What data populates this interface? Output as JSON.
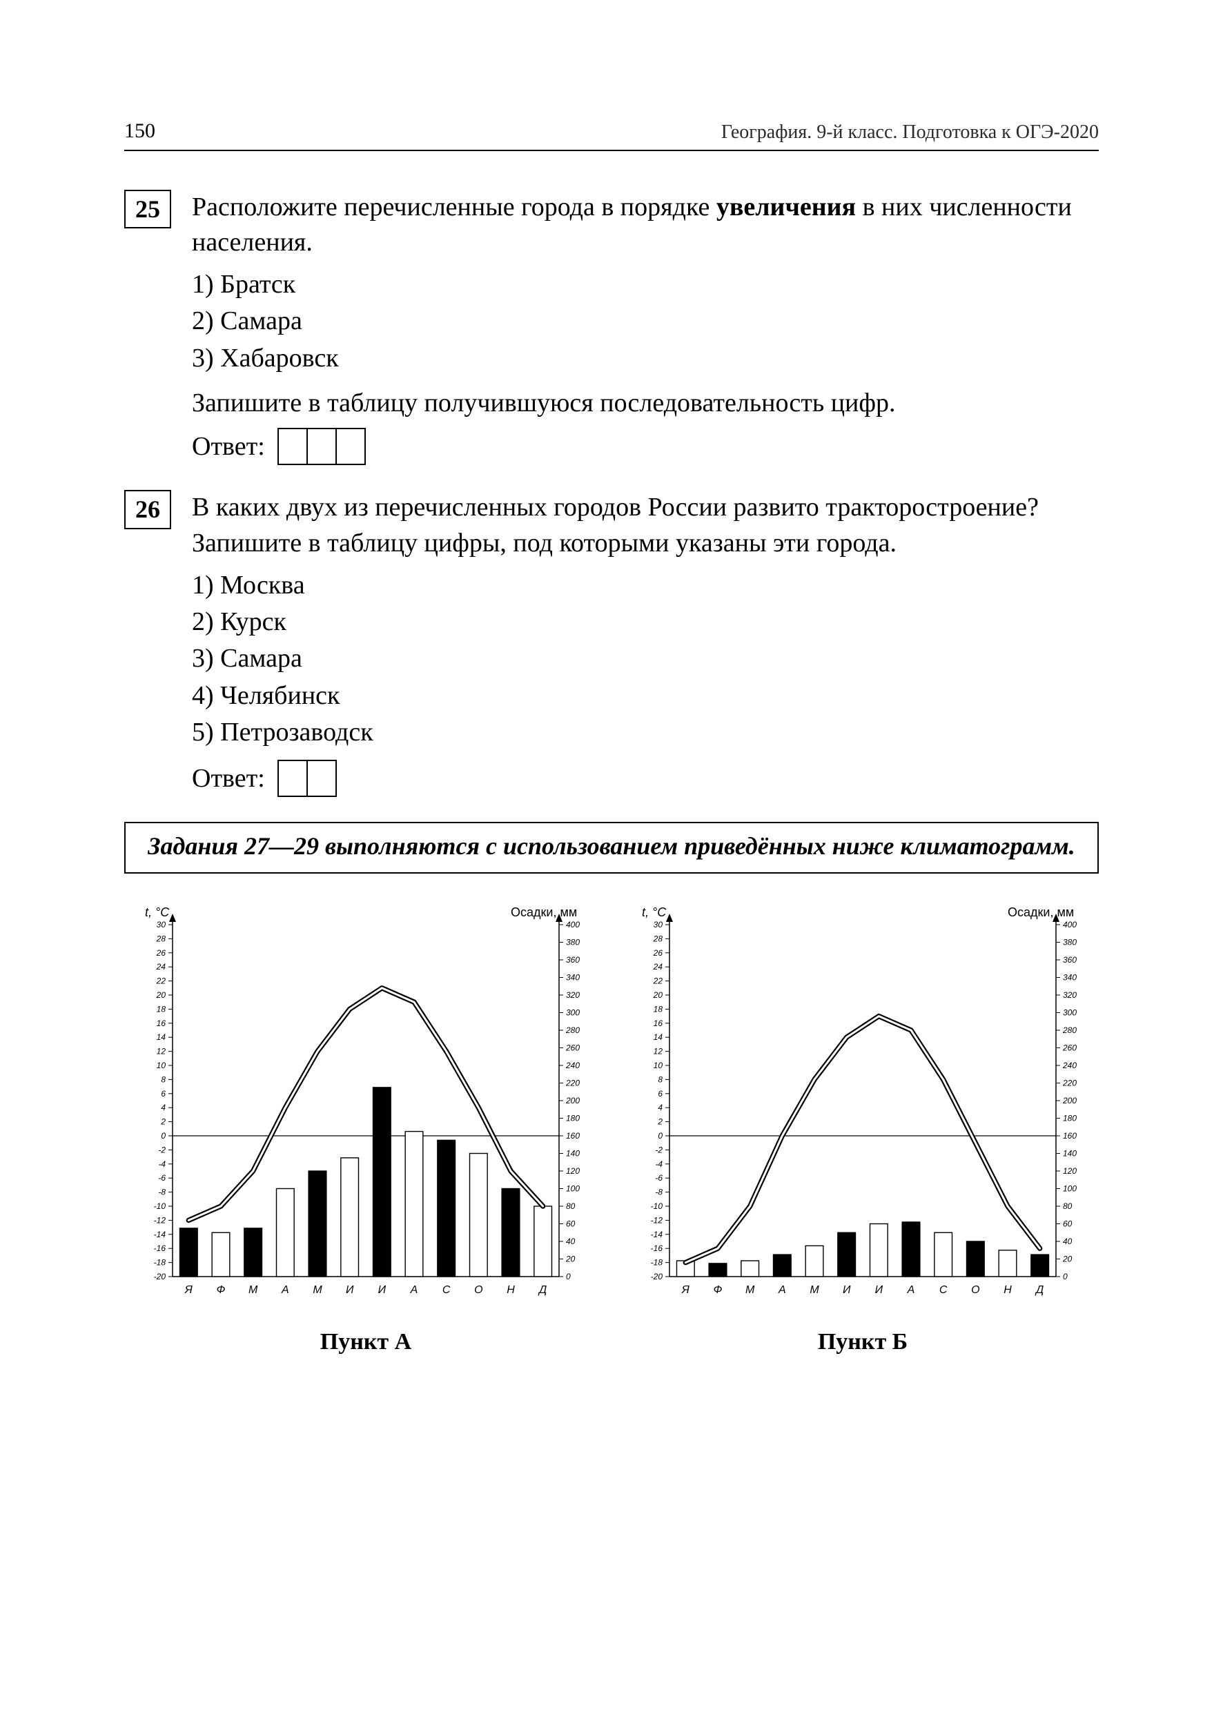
{
  "page_number": "150",
  "header_right": "География. 9-й класс. Подготовка к ОГЭ-2020",
  "task25": {
    "num": "25",
    "text_pre": "Расположите перечисленные города в порядке ",
    "text_bold": "увеличения",
    "text_post": " в них численности населения.",
    "options": [
      "1) Братск",
      "2) Самара",
      "3) Хабаровск"
    ],
    "instruction": "Запишите в таблицу получившуюся последовательность цифр.",
    "answer_label": "Ответ:",
    "answer_cells": 3
  },
  "task26": {
    "num": "26",
    "text": "В каких двух из перечисленных городов России развито тракторостроение? Запишите в таблицу цифры, под которыми указаны эти города.",
    "options": [
      "1) Москва",
      "2) Курск",
      "3) Самара",
      "4) Челябинск",
      "5) Петрозаводск"
    ],
    "answer_label": "Ответ:",
    "answer_cells": 2
  },
  "instruction_box": "Задания 27—29 выполняются с использованием приведённых ниже климатограмм.",
  "chart_common": {
    "left_axis_label": "t, °C",
    "right_axis_label": "Осадки, мм",
    "month_labels": [
      "Я",
      "Ф",
      "М",
      "А",
      "М",
      "И",
      "И",
      "А",
      "С",
      "О",
      "Н",
      "Д"
    ],
    "temp_axis": {
      "min": -20,
      "max": 30,
      "step": 2
    },
    "precip_axis": {
      "min": 0,
      "max": 400,
      "step": 20
    },
    "axis_text_fontsize": 12,
    "label_fontsize": 18,
    "bar_fill_color": "#000000",
    "bar_alt_fill_color": "#ffffff",
    "bar_stroke_color": "#000000",
    "line_color": "#000000",
    "line_width": 2.2,
    "line_gap": 3,
    "axis_color": "#000000",
    "tick_len": 6
  },
  "chartA": {
    "title": "Пункт А",
    "temps": [
      -12,
      -10,
      -5,
      4,
      12,
      18,
      21,
      19,
      12,
      4,
      -5,
      -10
    ],
    "precip": [
      55,
      50,
      55,
      100,
      120,
      135,
      215,
      165,
      155,
      140,
      100,
      80
    ],
    "bar_pattern": [
      "k",
      "w",
      "k",
      "w",
      "k",
      "w",
      "k",
      "w",
      "k",
      "w",
      "k",
      "w"
    ]
  },
  "chartB": {
    "title": "Пункт Б",
    "temps": [
      -18,
      -16,
      -10,
      0,
      8,
      14,
      17,
      15,
      8,
      -1,
      -10,
      -16
    ],
    "precip": [
      18,
      15,
      18,
      25,
      35,
      50,
      60,
      62,
      50,
      40,
      30,
      25
    ],
    "bar_pattern": [
      "w",
      "k",
      "w",
      "k",
      "w",
      "k",
      "w",
      "k",
      "w",
      "k",
      "w",
      "k"
    ]
  }
}
